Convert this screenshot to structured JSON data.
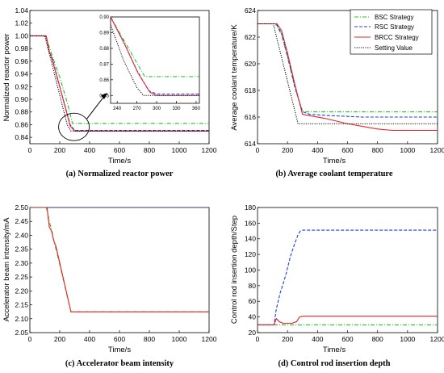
{
  "colors": {
    "bsc": "#22c322",
    "rsc": "#1f3fd6",
    "brcc": "#e8202a",
    "setting": "#000000"
  },
  "legend": {
    "entries": [
      {
        "label": "BSC Strategy",
        "color": "#22c322",
        "style": "dashdot"
      },
      {
        "label": "RSC Strategy",
        "color": "#1f3fd6",
        "style": "dash"
      },
      {
        "label": "BRCC Strategy",
        "color": "#e8202a",
        "style": "solid"
      },
      {
        "label": "Setting Value",
        "color": "#000000",
        "style": "dot"
      }
    ],
    "placement": "top-right of panel (b)"
  },
  "chart_data": [
    {
      "id": "a",
      "type": "line",
      "caption": "(a) Normalized reactor power",
      "xlabel": "Time/s",
      "ylabel": "Normalized reactor power",
      "xlim": [
        0,
        1200
      ],
      "ylim": [
        0.83,
        1.04
      ],
      "xticks": [
        0,
        200,
        400,
        600,
        800,
        1000,
        1200
      ],
      "yticks": [
        0.84,
        0.86,
        0.88,
        0.9,
        0.92,
        0.94,
        0.96,
        0.98,
        1.0,
        1.02,
        1.04
      ],
      "ytick_labels": [
        "0.84",
        "0.86",
        "0.88",
        "0.90",
        "0.92",
        "0.94",
        "0.96",
        "0.98",
        "1.00",
        "1.02",
        "1.04"
      ],
      "series": [
        {
          "key": "bsc",
          "color": "#22c322",
          "style": "dashdot",
          "points": [
            [
              0,
              1.0
            ],
            [
              105,
              1.0
            ],
            [
              140,
              0.975
            ],
            [
              200,
              0.935
            ],
            [
              250,
              0.895
            ],
            [
              285,
              0.862
            ],
            [
              1200,
              0.862
            ]
          ]
        },
        {
          "key": "rsc",
          "color": "#1f3fd6",
          "style": "dash",
          "points": [
            [
              0,
              1.0
            ],
            [
              108,
              1.0
            ],
            [
              130,
              0.975
            ],
            [
              150,
              0.965
            ],
            [
              200,
              0.92
            ],
            [
              270,
              0.86
            ],
            [
              300,
              0.851
            ],
            [
              1200,
              0.851
            ]
          ]
        },
        {
          "key": "brcc",
          "color": "#e8202a",
          "style": "solid",
          "points": [
            [
              0,
              1.0
            ],
            [
              110,
              1.0
            ],
            [
              130,
              0.975
            ],
            [
              150,
              0.962
            ],
            [
              200,
              0.92
            ],
            [
              270,
              0.858
            ],
            [
              300,
              0.85
            ],
            [
              1200,
              0.85
            ]
          ]
        },
        {
          "key": "setting",
          "color": "#000000",
          "style": "dot",
          "points": [
            [
              0,
              1.0
            ],
            [
              100,
              1.0
            ],
            [
              250,
              0.86
            ],
            [
              275,
              0.85
            ],
            [
              1200,
              0.85
            ]
          ]
        }
      ],
      "inset": {
        "xlim": [
          230,
          365
        ],
        "ylim": [
          0.845,
          0.9
        ],
        "xticks": [
          240,
          270,
          300,
          330,
          360
        ],
        "yticks": [
          0.85,
          0.86,
          0.87,
          0.88,
          0.89,
          0.9
        ],
        "ytick_labels": [
          "0.85",
          "0.86",
          "0.87",
          "0.88",
          "0.89",
          "0.90"
        ],
        "series": [
          {
            "key": "bsc",
            "color": "#22c322",
            "style": "dashdot",
            "points": [
              [
                230,
                0.9
              ],
              [
                260,
                0.878
              ],
              [
                282,
                0.862
              ],
              [
                365,
                0.862
              ]
            ]
          },
          {
            "key": "rsc",
            "color": "#1f3fd6",
            "style": "dash",
            "points": [
              [
                230,
                0.9
              ],
              [
                250,
                0.884
              ],
              [
                270,
                0.866
              ],
              [
                288,
                0.853
              ],
              [
                300,
                0.851
              ],
              [
                365,
                0.851
              ]
            ]
          },
          {
            "key": "brcc",
            "color": "#e8202a",
            "style": "solid",
            "points": [
              [
                230,
                0.9
              ],
              [
                252,
                0.882
              ],
              [
                272,
                0.864
              ],
              [
                290,
                0.852
              ],
              [
                300,
                0.85
              ],
              [
                365,
                0.85
              ]
            ]
          },
          {
            "key": "setting",
            "color": "#000000",
            "style": "dot",
            "points": [
              [
                230,
                0.895
              ],
              [
                250,
                0.872
              ],
              [
                270,
                0.855
              ],
              [
                280,
                0.85
              ],
              [
                365,
                0.85
              ]
            ]
          }
        ]
      }
    },
    {
      "id": "b",
      "type": "line",
      "caption": "(b) Average coolant temperature",
      "xlabel": "Time/s",
      "ylabel": "Average coolant temperature/K",
      "xlim": [
        0,
        1200
      ],
      "ylim": [
        614,
        624
      ],
      "xticks": [
        0,
        200,
        400,
        600,
        800,
        1000,
        1200
      ],
      "yticks": [
        614,
        616,
        618,
        620,
        622,
        624
      ],
      "ytick_labels": [
        "614",
        "616",
        "618",
        "620",
        "622",
        "624"
      ],
      "series": [
        {
          "key": "bsc",
          "color": "#22c322",
          "style": "dashdot",
          "points": [
            [
              0,
              623
            ],
            [
              120,
              623
            ],
            [
              160,
              622.2
            ],
            [
              200,
              620.5
            ],
            [
              250,
              618.2
            ],
            [
              300,
              616.4
            ],
            [
              1200,
              616.4
            ]
          ]
        },
        {
          "key": "rsc",
          "color": "#1f3fd6",
          "style": "dash",
          "points": [
            [
              0,
              623
            ],
            [
              125,
              623
            ],
            [
              160,
              622.3
            ],
            [
              200,
              620.6
            ],
            [
              250,
              618.2
            ],
            [
              300,
              616.4
            ],
            [
              350,
              616.2
            ],
            [
              500,
              616.1
            ],
            [
              700,
              616
            ],
            [
              1200,
              616
            ]
          ]
        },
        {
          "key": "brcc",
          "color": "#e8202a",
          "style": "solid",
          "points": [
            [
              0,
              623
            ],
            [
              130,
              623
            ],
            [
              160,
              622.5
            ],
            [
              200,
              620.8
            ],
            [
              250,
              618.4
            ],
            [
              300,
              616.2
            ],
            [
              450,
              615.9
            ],
            [
              600,
              615.5
            ],
            [
              800,
              615.1
            ],
            [
              900,
              615
            ],
            [
              1200,
              615
            ]
          ]
        },
        {
          "key": "setting",
          "color": "#000000",
          "style": "dot",
          "points": [
            [
              0,
              623
            ],
            [
              105,
              623
            ],
            [
              270,
              615.5
            ],
            [
              1200,
              615.5
            ]
          ]
        }
      ]
    },
    {
      "id": "c",
      "type": "line",
      "caption": "(c) Accelerator beam intensity",
      "xlabel": "Time/s",
      "ylabel": "Accelerator beam intensity/mA",
      "xlim": [
        0,
        1200
      ],
      "ylim": [
        2.05,
        2.5
      ],
      "xticks": [
        0,
        200,
        400,
        600,
        800,
        1000,
        1200
      ],
      "yticks": [
        2.05,
        2.1,
        2.15,
        2.2,
        2.25,
        2.3,
        2.35,
        2.4,
        2.45,
        2.5
      ],
      "ytick_labels": [
        "2.05",
        "2.10",
        "2.15",
        "2.20",
        "2.25",
        "2.30",
        "2.35",
        "2.40",
        "2.45",
        "2.50"
      ],
      "series": [
        {
          "key": "bsc",
          "color": "#22c322",
          "style": "dashdot",
          "points": [
            [
              0,
              2.5
            ],
            [
              110,
              2.5
            ],
            [
              135,
              2.44
            ],
            [
              150,
              2.41
            ],
            [
              165,
              2.37
            ],
            [
              180,
              2.34
            ],
            [
              275,
              2.125
            ],
            [
              1200,
              2.125
            ]
          ]
        },
        {
          "key": "rsc",
          "color": "#1f3fd6",
          "style": "dash",
          "points": [
            [
              0,
              2.5
            ],
            [
              1200,
              2.5
            ]
          ]
        },
        {
          "key": "brcc",
          "color": "#e8202a",
          "style": "solid",
          "points": [
            [
              0,
              2.5
            ],
            [
              115,
              2.5
            ],
            [
              130,
              2.43
            ],
            [
              145,
              2.415
            ],
            [
              160,
              2.38
            ],
            [
              175,
              2.36
            ],
            [
              275,
              2.125
            ],
            [
              1200,
              2.125
            ]
          ]
        }
      ]
    },
    {
      "id": "d",
      "type": "line",
      "caption": "(d) Control rod insertion depth",
      "xlabel": "Time/s",
      "ylabel": "Control rod insertion depth/Step",
      "xlim": [
        0,
        1200
      ],
      "ylim": [
        20,
        180
      ],
      "xticks": [
        0,
        200,
        400,
        600,
        800,
        1000,
        1200
      ],
      "yticks": [
        20,
        40,
        60,
        80,
        100,
        120,
        140,
        160,
        180
      ],
      "ytick_labels": [
        "20",
        "40",
        "60",
        "80",
        "100",
        "120",
        "140",
        "160",
        "180"
      ],
      "series": [
        {
          "key": "bsc",
          "color": "#22c322",
          "style": "dashdot",
          "points": [
            [
              0,
              30
            ],
            [
              1200,
              30
            ]
          ]
        },
        {
          "key": "rsc",
          "color": "#1f3fd6",
          "style": "dash",
          "points": [
            [
              0,
              30
            ],
            [
              110,
              30
            ],
            [
              125,
              50
            ],
            [
              150,
              70
            ],
            [
              175,
              85
            ],
            [
              190,
              95
            ],
            [
              220,
              118
            ],
            [
              250,
              135
            ],
            [
              270,
              145
            ],
            [
              285,
              150
            ],
            [
              300,
              151
            ],
            [
              1200,
              151
            ]
          ]
        },
        {
          "key": "brcc",
          "color": "#e8202a",
          "style": "solid",
          "points": [
            [
              0,
              30
            ],
            [
              110,
              30
            ],
            [
              125,
              38
            ],
            [
              145,
              34
            ],
            [
              170,
              32
            ],
            [
              200,
              32
            ],
            [
              230,
              32
            ],
            [
              260,
              34
            ],
            [
              280,
              40
            ],
            [
              300,
              41
            ],
            [
              400,
              41
            ],
            [
              1200,
              41
            ]
          ]
        }
      ]
    }
  ]
}
